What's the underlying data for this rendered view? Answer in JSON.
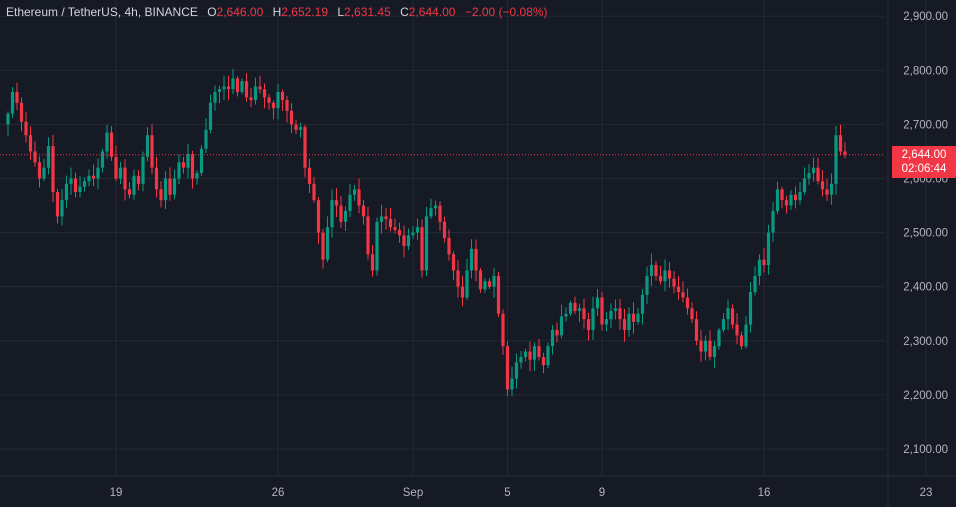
{
  "header": {
    "symbol": "Ethereum / TetherUS, 4h, BINANCE",
    "ohlc": [
      {
        "label": "O",
        "value": "2,646.00"
      },
      {
        "label": "H",
        "value": "2,652.19"
      },
      {
        "label": "L",
        "value": "2,631.45"
      },
      {
        "label": "C",
        "value": "2,644.00"
      }
    ],
    "change": "−2.00 (−0.08%)"
  },
  "price_badge": {
    "price": "2,644.00",
    "countdown": "02:06:44"
  },
  "colors": {
    "background": "#161a25",
    "grid": "#242832",
    "up": "#089981",
    "down": "#f23645",
    "text": "#d1d4dc",
    "axis_text": "#b2b5be"
  },
  "chart_data": {
    "type": "candlestick",
    "interval": "4h",
    "ylim": [
      2050,
      2930
    ],
    "y_ticks": [
      2100,
      2200,
      2300,
      2400,
      2500,
      2600,
      2700,
      2800,
      2900
    ],
    "y_tick_labels": [
      "2,100.00",
      "2,200.00",
      "2,300.00",
      "2,400.00",
      "2,500.00",
      "2,600.00",
      "2,700.00",
      "2,800.00",
      "2,900.00"
    ],
    "x_tick_labels": [
      "19",
      "26",
      "Sep",
      "5",
      "9",
      "16",
      "23"
    ],
    "x_tick_candle_index": [
      24,
      60,
      90,
      111,
      132,
      168,
      204
    ],
    "last_price": 2644,
    "closes": [
      2720,
      2760,
      2740,
      2705,
      2680,
      2650,
      2630,
      2600,
      2620,
      2660,
      2575,
      2530,
      2560,
      2590,
      2600,
      2575,
      2585,
      2595,
      2605,
      2600,
      2620,
      2650,
      2685,
      2640,
      2600,
      2620,
      2580,
      2570,
      2605,
      2590,
      2640,
      2680,
      2620,
      2580,
      2560,
      2600,
      2570,
      2600,
      2630,
      2620,
      2645,
      2600,
      2610,
      2655,
      2690,
      2740,
      2760,
      2765,
      2770,
      2765,
      2785,
      2760,
      2780,
      2750,
      2745,
      2770,
      2765,
      2750,
      2740,
      2730,
      2760,
      2745,
      2725,
      2700,
      2690,
      2695,
      2620,
      2590,
      2560,
      2500,
      2450,
      2510,
      2560,
      2550,
      2520,
      2540,
      2570,
      2580,
      2550,
      2530,
      2460,
      2430,
      2520,
      2530,
      2525,
      2510,
      2505,
      2495,
      2475,
      2495,
      2500,
      2510,
      2430,
      2530,
      2545,
      2550,
      2520,
      2490,
      2460,
      2430,
      2400,
      2380,
      2430,
      2470,
      2430,
      2395,
      2410,
      2400,
      2420,
      2350,
      2290,
      2210,
      2230,
      2260,
      2270,
      2280,
      2265,
      2290,
      2270,
      2255,
      2290,
      2320,
      2310,
      2345,
      2350,
      2370,
      2355,
      2360,
      2340,
      2320,
      2360,
      2380,
      2330,
      2340,
      2355,
      2360,
      2340,
      2320,
      2350,
      2335,
      2350,
      2385,
      2420,
      2440,
      2420,
      2410,
      2430,
      2415,
      2400,
      2390,
      2380,
      2360,
      2340,
      2300,
      2280,
      2300,
      2270,
      2290,
      2320,
      2340,
      2360,
      2330,
      2310,
      2290,
      2330,
      2390,
      2420,
      2450,
      2440,
      2500,
      2540,
      2580,
      2560,
      2550,
      2570,
      2560,
      2575,
      2600,
      2610,
      2620,
      2595,
      2580,
      2570,
      2590,
      2680,
      2650,
      2644
    ]
  }
}
